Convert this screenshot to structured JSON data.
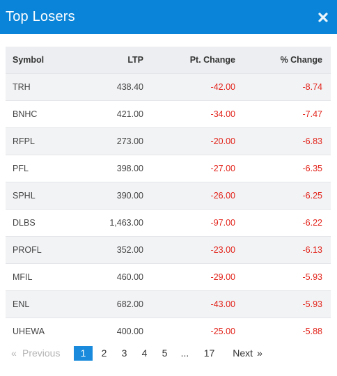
{
  "header": {
    "title": "Top Losers",
    "close_icon": "close-icon"
  },
  "table": {
    "columns": [
      "Symbol",
      "LTP",
      "Pt. Change",
      "% Change"
    ],
    "rows": [
      {
        "symbol": "TRH",
        "ltp": "438.40",
        "pt_change": "-42.00",
        "pct_change": "-8.74"
      },
      {
        "symbol": "BNHC",
        "ltp": "421.00",
        "pt_change": "-34.00",
        "pct_change": "-7.47"
      },
      {
        "symbol": "RFPL",
        "ltp": "273.00",
        "pt_change": "-20.00",
        "pct_change": "-6.83"
      },
      {
        "symbol": "PFL",
        "ltp": "398.00",
        "pt_change": "-27.00",
        "pct_change": "-6.35"
      },
      {
        "symbol": "SPHL",
        "ltp": "390.00",
        "pt_change": "-26.00",
        "pct_change": "-6.25"
      },
      {
        "symbol": "DLBS",
        "ltp": "1,463.00",
        "pt_change": "-97.00",
        "pct_change": "-6.22"
      },
      {
        "symbol": "PROFL",
        "ltp": "352.00",
        "pt_change": "-23.00",
        "pct_change": "-6.13"
      },
      {
        "symbol": "MFIL",
        "ltp": "460.00",
        "pt_change": "-29.00",
        "pct_change": "-5.93"
      },
      {
        "symbol": "ENL",
        "ltp": "682.00",
        "pt_change": "-43.00",
        "pct_change": "-5.93"
      },
      {
        "symbol": "UHEWA",
        "ltp": "400.00",
        "pt_change": "-25.00",
        "pct_change": "-5.88"
      }
    ]
  },
  "pagination": {
    "prev_arrow": "«",
    "prev_label": "Previous",
    "pages": [
      "1",
      "2",
      "3",
      "4",
      "5"
    ],
    "active_page": "1",
    "ellipsis": "...",
    "last_page": "17",
    "next_label": "Next",
    "next_arrow": "»"
  },
  "colors": {
    "header_bg": "#0a84d8",
    "negative": "#e2231a",
    "active_page_bg": "#1a8bdc"
  }
}
